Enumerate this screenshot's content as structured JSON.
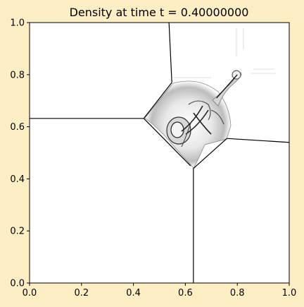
{
  "chart_data": {
    "type": "heatmap",
    "title": "Density at time t =      0.40000000",
    "xlabel": "",
    "ylabel": "",
    "xlim": [
      0.0,
      1.0
    ],
    "ylim": [
      0.0,
      1.0
    ],
    "xticks": [
      0.0,
      0.2,
      0.4,
      0.6,
      0.8,
      1.0
    ],
    "xtick_labels": [
      "0.0",
      "0.2",
      "0.4",
      "0.6",
      "0.8",
      "1.0"
    ],
    "yticks": [
      0.0,
      0.2,
      0.4,
      0.6,
      0.8,
      1.0
    ],
    "ytick_labels": [
      "0.0",
      "0.2",
      "0.4",
      "0.6",
      "0.8",
      "1.0"
    ],
    "grid": false,
    "colormap": "grayscale",
    "colors": {
      "figure_background": "#fdeec4",
      "plot_background": "#ffffff",
      "lines": "#000000"
    },
    "features": [
      {
        "name": "shock-left",
        "points": [
          [
            0.0,
            0.632
          ],
          [
            0.44,
            0.632
          ]
        ]
      },
      {
        "name": "shock-top",
        "points": [
          [
            0.537,
            1.0
          ],
          [
            0.548,
            0.77
          ]
        ]
      },
      {
        "name": "shock-right",
        "points": [
          [
            0.76,
            0.555
          ],
          [
            1.0,
            0.54
          ]
        ]
      },
      {
        "name": "shock-bottom",
        "points": [
          [
            0.631,
            0.44
          ],
          [
            0.631,
            0.0
          ]
        ]
      },
      {
        "name": "inner-ul",
        "points": [
          [
            0.44,
            0.632
          ],
          [
            0.548,
            0.77
          ]
        ]
      },
      {
        "name": "inner-ll",
        "points": [
          [
            0.44,
            0.632
          ],
          [
            0.62,
            0.45
          ]
        ]
      },
      {
        "name": "inner-lr",
        "points": [
          [
            0.631,
            0.44
          ],
          [
            0.76,
            0.555
          ]
        ]
      },
      {
        "name": "jet-arm",
        "points": [
          [
            0.72,
            0.71
          ],
          [
            0.8,
            0.8
          ]
        ]
      }
    ]
  }
}
